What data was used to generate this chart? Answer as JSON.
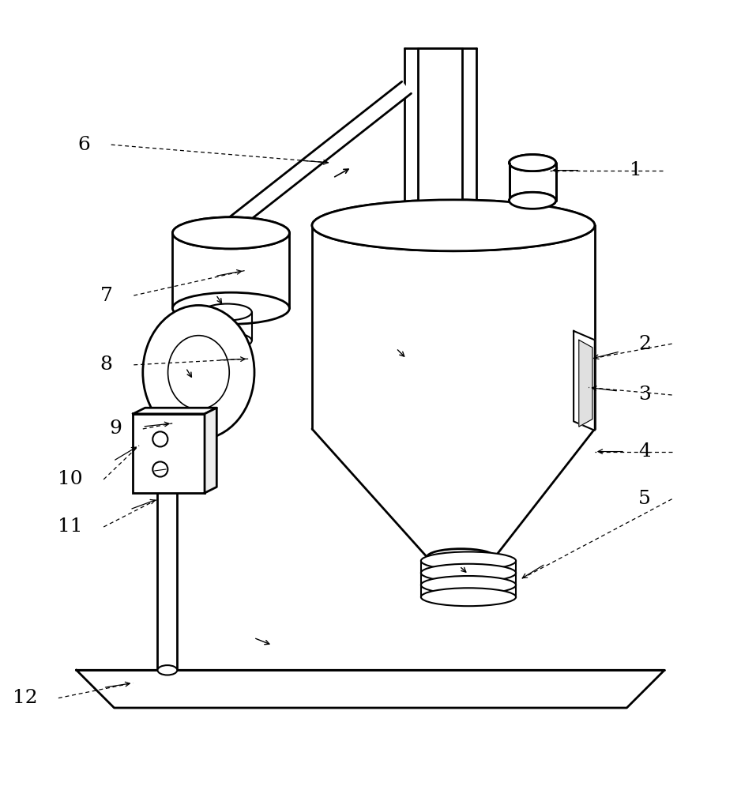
{
  "background_color": "#ffffff",
  "line_color": "#000000",
  "line_width": 1.5,
  "label_fontsize": 18,
  "figure_width": 9.57,
  "figure_height": 10.0
}
